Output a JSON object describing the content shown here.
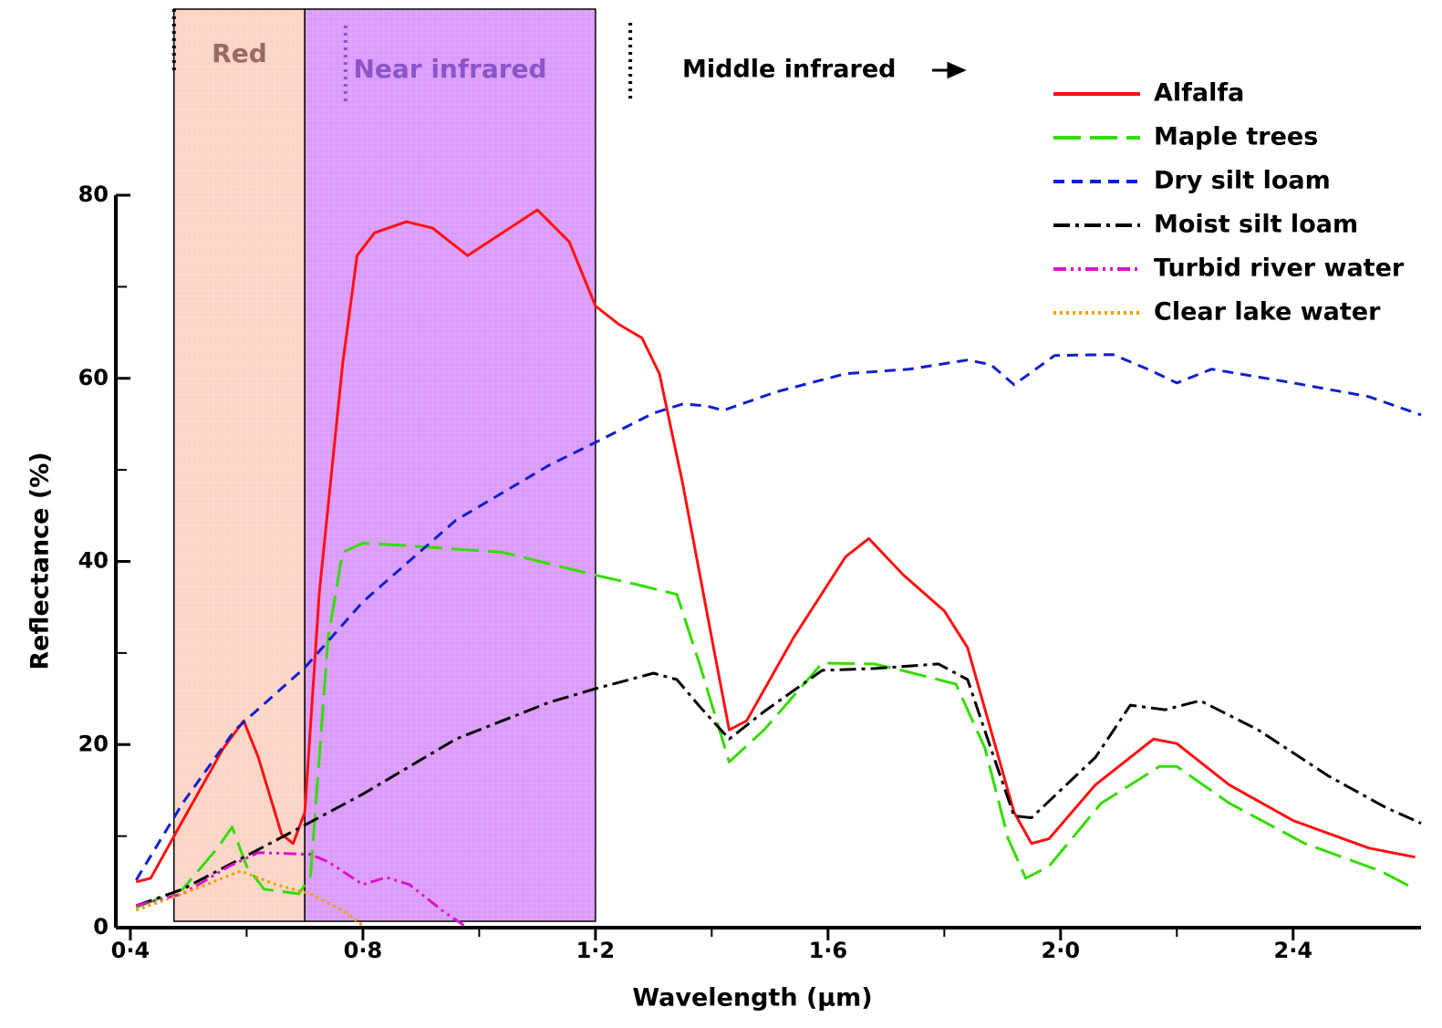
{
  "chart_data": {
    "type": "line",
    "x_label": "Wavelength (µm)",
    "y_label": "Reflectance (%)",
    "xlim": [
      0.375,
      2.62
    ],
    "ylim": [
      0,
      80
    ],
    "xticks": [
      {
        "value": 0.4,
        "label": "0·4"
      },
      {
        "value": 0.8,
        "label": "0·8"
      },
      {
        "value": 1.2,
        "label": "1·2"
      },
      {
        "value": 1.6,
        "label": "1·6"
      },
      {
        "value": 2.0,
        "label": "2·0"
      },
      {
        "value": 2.4,
        "label": "2·4"
      }
    ],
    "xminor": [
      0.6,
      1.0,
      1.4,
      1.8,
      2.2
    ],
    "yticks": [
      0,
      20,
      40,
      60,
      80
    ],
    "yminor": [
      10,
      30,
      50,
      70
    ],
    "bands": [
      {
        "label": "Red",
        "range": [
          0.475,
          0.7
        ],
        "color": "#fdd5c6",
        "label_color": "#9a6a5e"
      },
      {
        "label": "Near infrared",
        "range": [
          0.7,
          1.2
        ],
        "color": "#dc9cfb",
        "label_color": "#8a55c8"
      }
    ],
    "dividers": [
      0.475,
      0.77,
      1.26
    ],
    "annotation": "Middle infrared",
    "legend": "top-right",
    "series": [
      {
        "name": "Alfalfa",
        "color": "#ff1010",
        "style": "solid",
        "x": [
          0.41,
          0.435,
          0.49,
          0.56,
          0.595,
          0.62,
          0.66,
          0.68,
          0.7,
          0.725,
          0.765,
          0.79,
          0.82,
          0.875,
          0.92,
          0.98,
          1.04,
          1.1,
          1.155,
          1.2,
          1.24,
          1.28,
          1.31,
          1.35,
          1.4,
          1.43,
          1.46,
          1.54,
          1.63,
          1.67,
          1.73,
          1.8,
          1.84,
          1.88,
          1.92,
          1.95,
          1.98,
          2.06,
          2.16,
          2.2,
          2.29,
          2.4,
          2.53,
          2.61
        ],
        "values": [
          5,
          5.4,
          11.7,
          19.6,
          22.6,
          18.6,
          10.2,
          9.2,
          12.6,
          36.6,
          61.5,
          73.4,
          75.9,
          77.1,
          76.4,
          73.4,
          75.9,
          78.4,
          74.9,
          67.9,
          65.9,
          64.4,
          60.5,
          48.5,
          31.6,
          21.6,
          22.6,
          31.6,
          40.5,
          42.5,
          38.5,
          34.6,
          30.6,
          21.6,
          12.6,
          9.2,
          9.7,
          15.6,
          20.6,
          20.1,
          15.6,
          11.7,
          8.7,
          7.7
        ]
      },
      {
        "name": "Maple trees",
        "color": "#33dd00",
        "style": "longdash",
        "x": [
          0.41,
          0.49,
          0.55,
          0.575,
          0.6,
          0.63,
          0.69,
          0.71,
          0.74,
          0.765,
          0.8,
          0.88,
          1.04,
          1.2,
          1.27,
          1.34,
          1.38,
          1.43,
          1.49,
          1.59,
          1.68,
          1.74,
          1.82,
          1.87,
          1.91,
          1.94,
          1.98,
          2.07,
          2.17,
          2.2,
          2.29,
          2.42,
          2.55,
          2.61
        ],
        "values": [
          2.2,
          4.2,
          8.7,
          11,
          6.7,
          4.2,
          3.7,
          5.7,
          31.6,
          41,
          42,
          41.7,
          41,
          38.5,
          37.5,
          36.4,
          28.6,
          18.1,
          21.6,
          28.9,
          28.8,
          27.9,
          26.6,
          19.6,
          9.7,
          5.4,
          6.7,
          13.6,
          17.6,
          17.6,
          13.6,
          9.2,
          6.2,
          4.2
        ]
      },
      {
        "name": "Dry silt loam",
        "color": "#1020cc",
        "style": "dash",
        "x": [
          0.41,
          0.49,
          0.58,
          0.7,
          0.8,
          0.96,
          1.12,
          1.2,
          1.3,
          1.35,
          1.39,
          1.42,
          1.51,
          1.63,
          1.74,
          1.84,
          1.88,
          1.92,
          1.99,
          2.09,
          2.15,
          2.2,
          2.26,
          2.4,
          2.53,
          2.62
        ],
        "values": [
          5.2,
          13.6,
          21.6,
          28.4,
          35.6,
          44.5,
          50.5,
          53,
          56.2,
          57.2,
          57,
          56.5,
          58.5,
          60.5,
          61,
          62,
          61.5,
          59.3,
          62.5,
          62.6,
          61,
          59.5,
          61,
          59.5,
          58,
          56
        ]
      },
      {
        "name": "Moist silt loam",
        "color": "#000000",
        "style": "dashdot",
        "x": [
          0.41,
          0.49,
          0.58,
          0.7,
          0.8,
          0.96,
          1.12,
          1.2,
          1.3,
          1.34,
          1.38,
          1.43,
          1.49,
          1.59,
          1.68,
          1.79,
          1.84,
          1.88,
          1.92,
          1.95,
          2.06,
          2.12,
          2.18,
          2.24,
          2.34,
          2.46,
          2.56,
          2.62
        ],
        "values": [
          2.4,
          4.2,
          7.2,
          11.2,
          14.6,
          20.6,
          24.6,
          26.1,
          27.8,
          27.1,
          24.1,
          20.6,
          23.6,
          28.1,
          28.3,
          28.8,
          27.1,
          19.6,
          12.2,
          12,
          18.6,
          24.3,
          23.8,
          24.8,
          21.6,
          16.6,
          13.1,
          11.4
        ]
      },
      {
        "name": "Turbid river water",
        "color": "#dd10cc",
        "style": "dashdotdot",
        "x": [
          0.41,
          0.49,
          0.57,
          0.62,
          0.71,
          0.74,
          0.8,
          0.84,
          0.88,
          0.94,
          0.975
        ],
        "values": [
          2.4,
          3.7,
          6.7,
          8.2,
          8,
          7.2,
          4.7,
          5.5,
          4.7,
          1.7,
          0.2
        ]
      },
      {
        "name": "Clear lake water",
        "color": "#f0a000",
        "style": "dotted",
        "x": [
          0.41,
          0.49,
          0.59,
          0.65,
          0.71,
          0.77,
          0.8
        ],
        "values": [
          1.9,
          3.7,
          6.2,
          4.7,
          3.7,
          1.7,
          0.2
        ]
      }
    ]
  }
}
